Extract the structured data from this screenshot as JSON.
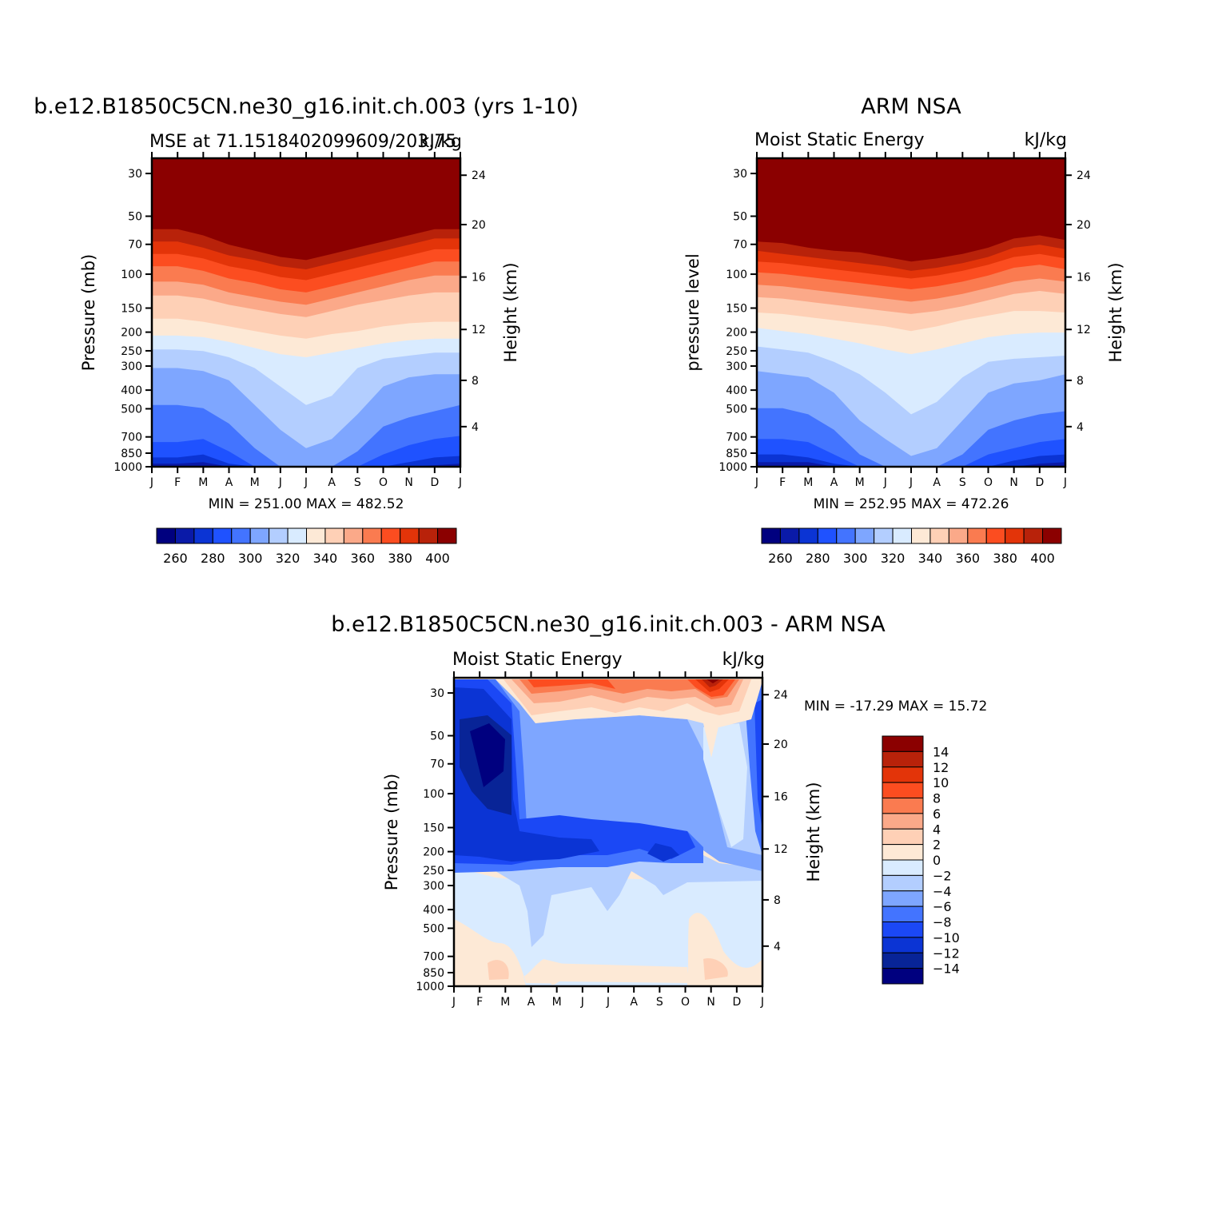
{
  "colors": {
    "main_levels": [
      "#00007f",
      "#0a1aa8",
      "#0b34d4",
      "#1f52ff",
      "#4374ff",
      "#7ea6ff",
      "#b3ceff",
      "#d9ebff",
      "#fde9d6",
      "#fed0b6",
      "#fba989",
      "#fa7b50",
      "#fc4d20",
      "#e33409",
      "#b8220a",
      "#8b0000"
    ],
    "diff_levels": [
      "#00007f",
      "#082497",
      "#0b34d4",
      "#1b48f5",
      "#4374ff",
      "#7ea6ff",
      "#b3ceff",
      "#d9ebff",
      "#fde9d6",
      "#fed0b6",
      "#fba989",
      "#fa7b50",
      "#fc4d20",
      "#e33409",
      "#b8220a",
      "#8b0000"
    ]
  },
  "panels": {
    "model": {
      "title": "b.e12.B1850C5CN.ne30_g16.init.ch.003 (yrs 1-10)",
      "left_label": "MSE at 71.1518402099609/203.75",
      "right_label": "kJ/kg",
      "ylabel_left": "Pressure (mb)",
      "ylabel_right": "Height (km)",
      "minmax": "MIN =  251.00  MAX =  482.52"
    },
    "obs": {
      "title": "ARM NSA",
      "left_label": "Moist Static Energy",
      "right_label": "kJ/kg",
      "ylabel_left": "pressure level",
      "ylabel_right": "Height (km)",
      "minmax": "MIN =  252.95  MAX =  472.26"
    },
    "diff": {
      "title": "b.e12.B1850C5CN.ne30_g16.init.ch.003 - ARM NSA",
      "left_label": "Moist Static Energy",
      "right_label": "kJ/kg",
      "ylabel_left": "Pressure (mb)",
      "ylabel_right": "Height (km)",
      "minmax": "MIN = -17.29  MAX =   15.72"
    }
  },
  "chart_data": [
    {
      "type": "heatmap",
      "title": "b.e12.B1850C5CN.ne30_g16.init.ch.003 (yrs 1-10)",
      "units": "kJ/kg",
      "x_tick_labels": [
        "J",
        "F",
        "M",
        "A",
        "M",
        "J",
        "J",
        "A",
        "S",
        "O",
        "N",
        "D",
        "J"
      ],
      "y_tick_labels": [
        "30",
        "50",
        "70",
        "100",
        "150",
        "200",
        "250",
        "300",
        "400",
        "500",
        "700",
        "850",
        "1000"
      ],
      "y_right_tick_labels": [
        "24",
        "20",
        "16",
        "12",
        "8",
        "4"
      ],
      "colorbar_labels": [
        "260",
        "280",
        "300",
        "320",
        "340",
        "360",
        "380",
        "400"
      ],
      "level_boundaries_top_to_bottom": [
        [
          0.23,
          0.23,
          0.25,
          0.28,
          0.3,
          0.32,
          0.33,
          0.31,
          0.29,
          0.27,
          0.25,
          0.23,
          0.23
        ],
        [
          0.27,
          0.27,
          0.29,
          0.315,
          0.33,
          0.35,
          0.36,
          0.34,
          0.32,
          0.3,
          0.28,
          0.26,
          0.26
        ],
        [
          0.31,
          0.31,
          0.325,
          0.35,
          0.365,
          0.385,
          0.395,
          0.375,
          0.355,
          0.335,
          0.315,
          0.295,
          0.295
        ],
        [
          0.35,
          0.35,
          0.365,
          0.39,
          0.405,
          0.425,
          0.435,
          0.415,
          0.395,
          0.375,
          0.355,
          0.335,
          0.335
        ],
        [
          0.4,
          0.4,
          0.41,
          0.435,
          0.45,
          0.465,
          0.475,
          0.455,
          0.435,
          0.415,
          0.395,
          0.38,
          0.38
        ],
        [
          0.445,
          0.445,
          0.455,
          0.475,
          0.49,
          0.505,
          0.515,
          0.495,
          0.475,
          0.46,
          0.445,
          0.435,
          0.435
        ],
        [
          0.52,
          0.52,
          0.53,
          0.545,
          0.56,
          0.575,
          0.585,
          0.57,
          0.56,
          0.545,
          0.535,
          0.53,
          0.53
        ],
        [
          0.575,
          0.575,
          0.58,
          0.595,
          0.615,
          0.635,
          0.645,
          0.63,
          0.615,
          0.6,
          0.59,
          0.585,
          0.585
        ],
        [
          0.62,
          0.62,
          0.625,
          0.645,
          0.68,
          0.74,
          0.8,
          0.77,
          0.68,
          0.65,
          0.64,
          0.63,
          0.63
        ],
        [
          0.68,
          0.68,
          0.69,
          0.72,
          0.8,
          0.88,
          0.94,
          0.91,
          0.83,
          0.74,
          0.71,
          0.7,
          0.7
        ],
        [
          0.8,
          0.8,
          0.81,
          0.86,
          0.94,
          1.0,
          1.0,
          1.0,
          0.95,
          0.87,
          0.84,
          0.82,
          0.8
        ],
        [
          0.92,
          0.92,
          0.91,
          0.95,
          1.0,
          1.0,
          1.0,
          1.0,
          1.0,
          0.96,
          0.93,
          0.91,
          0.9
        ],
        [
          0.97,
          0.97,
          0.96,
          0.99,
          1.0,
          1.0,
          1.0,
          1.0,
          1.0,
          1.0,
          0.985,
          0.97,
          0.965
        ],
        [
          0.99,
          0.99,
          0.985,
          1.0,
          1.0,
          1.0,
          1.0,
          1.0,
          1.0,
          1.0,
          1.0,
          0.995,
          0.99
        ],
        [
          1.0,
          1.0,
          1.0,
          1.0,
          1.0,
          1.0,
          1.0,
          1.0,
          1.0,
          1.0,
          1.0,
          1.0,
          1.0
        ]
      ]
    },
    {
      "type": "heatmap",
      "title": "ARM NSA",
      "units": "kJ/kg",
      "x_tick_labels": [
        "J",
        "F",
        "M",
        "A",
        "M",
        "J",
        "J",
        "A",
        "S",
        "O",
        "N",
        "D",
        "J"
      ],
      "y_tick_labels": [
        "30",
        "50",
        "70",
        "100",
        "150",
        "200",
        "250",
        "300",
        "400",
        "500",
        "700",
        "850",
        "1000"
      ],
      "y_right_tick_labels": [
        "24",
        "20",
        "16",
        "12",
        "8",
        "4"
      ],
      "colorbar_labels": [
        "260",
        "280",
        "300",
        "320",
        "340",
        "360",
        "380",
        "400"
      ],
      "level_boundaries_top_to_bottom": [
        [
          0.27,
          0.275,
          0.29,
          0.3,
          0.305,
          0.32,
          0.335,
          0.325,
          0.31,
          0.29,
          0.26,
          0.25,
          0.265
        ],
        [
          0.3,
          0.31,
          0.32,
          0.33,
          0.34,
          0.35,
          0.365,
          0.355,
          0.34,
          0.32,
          0.29,
          0.28,
          0.295
        ],
        [
          0.335,
          0.34,
          0.35,
          0.36,
          0.37,
          0.38,
          0.39,
          0.38,
          0.365,
          0.345,
          0.32,
          0.31,
          0.325
        ],
        [
          0.37,
          0.375,
          0.385,
          0.395,
          0.405,
          0.415,
          0.425,
          0.415,
          0.4,
          0.38,
          0.355,
          0.345,
          0.36
        ],
        [
          0.41,
          0.415,
          0.425,
          0.435,
          0.445,
          0.455,
          0.465,
          0.455,
          0.44,
          0.42,
          0.4,
          0.39,
          0.4
        ],
        [
          0.45,
          0.455,
          0.465,
          0.475,
          0.485,
          0.495,
          0.505,
          0.495,
          0.48,
          0.46,
          0.44,
          0.43,
          0.44
        ],
        [
          0.5,
          0.505,
          0.515,
          0.525,
          0.535,
          0.545,
          0.56,
          0.545,
          0.525,
          0.51,
          0.495,
          0.495,
          0.5
        ],
        [
          0.55,
          0.56,
          0.57,
          0.585,
          0.6,
          0.62,
          0.635,
          0.62,
          0.6,
          0.58,
          0.57,
          0.565,
          0.565
        ],
        [
          0.61,
          0.62,
          0.63,
          0.66,
          0.7,
          0.76,
          0.83,
          0.79,
          0.71,
          0.66,
          0.65,
          0.645,
          0.64
        ],
        [
          0.69,
          0.7,
          0.71,
          0.76,
          0.85,
          0.91,
          0.965,
          0.94,
          0.85,
          0.76,
          0.73,
          0.72,
          0.7
        ],
        [
          0.81,
          0.81,
          0.83,
          0.88,
          0.96,
          1.0,
          1.0,
          1.0,
          0.96,
          0.88,
          0.85,
          0.83,
          0.82
        ],
        [
          0.91,
          0.91,
          0.92,
          0.96,
          1.0,
          1.0,
          1.0,
          1.0,
          1.0,
          0.96,
          0.94,
          0.92,
          0.91
        ],
        [
          0.96,
          0.96,
          0.97,
          0.99,
          1.0,
          1.0,
          1.0,
          1.0,
          1.0,
          1.0,
          0.98,
          0.965,
          0.96
        ],
        [
          0.985,
          0.985,
          0.985,
          1.0,
          1.0,
          1.0,
          1.0,
          1.0,
          1.0,
          1.0,
          1.0,
          0.99,
          0.985
        ],
        [
          1.0,
          1.0,
          1.0,
          1.0,
          1.0,
          1.0,
          1.0,
          1.0,
          1.0,
          1.0,
          1.0,
          1.0,
          1.0
        ]
      ]
    },
    {
      "type": "heatmap",
      "title": "b.e12.B1850C5CN.ne30_g16.init.ch.003 - ARM NSA",
      "units": "kJ/kg",
      "x_tick_labels": [
        "J",
        "F",
        "M",
        "A",
        "M",
        "J",
        "J",
        "A",
        "S",
        "O",
        "N",
        "D",
        "J"
      ],
      "y_tick_labels": [
        "30",
        "50",
        "70",
        "100",
        "150",
        "200",
        "250",
        "300",
        "400",
        "500",
        "700",
        "850",
        "1000"
      ],
      "y_right_tick_labels": [
        "24",
        "20",
        "16",
        "12",
        "8",
        "4"
      ],
      "colorbar_labels": [
        "14",
        "12",
        "10",
        "8",
        "6",
        "4",
        "2",
        "0",
        "-2",
        "-4",
        "-6",
        "-8",
        "-10",
        "-12",
        "-14"
      ]
    }
  ]
}
